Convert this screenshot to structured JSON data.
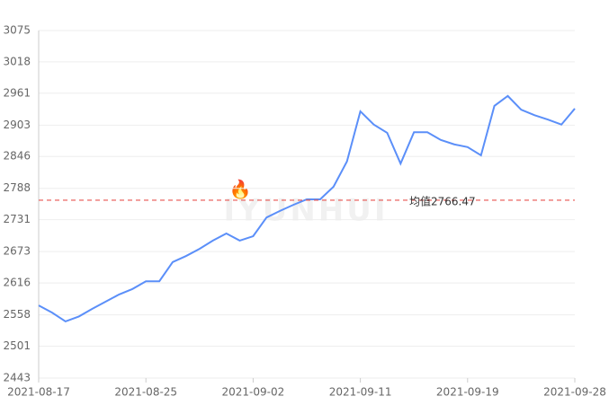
{
  "chart_data": {
    "type": "line",
    "categories": [
      "2021-08-17",
      null,
      null,
      null,
      null,
      null,
      null,
      null,
      "2021-08-25",
      null,
      null,
      null,
      null,
      null,
      null,
      null,
      "2021-09-02",
      null,
      null,
      null,
      null,
      null,
      null,
      null,
      "2021-09-11",
      null,
      null,
      null,
      null,
      null,
      null,
      null,
      "2021-09-19",
      null,
      null,
      null,
      null,
      null,
      null,
      null,
      "2021-09-28"
    ],
    "series": [
      {
        "color": "#5b8ff9",
        "values": [
          2575,
          2562,
          2546,
          2555,
          2569,
          2582,
          2595,
          2605,
          2619,
          2619,
          2654,
          2665,
          2678,
          2693,
          2706,
          2693,
          2701,
          2735,
          2747,
          2758,
          2768,
          2768,
          2791,
          2837,
          2928,
          2904,
          2889,
          2833,
          2890,
          2890,
          2876,
          2868,
          2863,
          2848,
          2938,
          2956,
          2931,
          2921,
          2913,
          2904,
          2933
        ]
      }
    ],
    "ylim": [
      2443,
      3075
    ],
    "yticks": [
      2443,
      2501,
      2558,
      2616,
      2673,
      2731,
      2788,
      2846,
      2903,
      2961,
      3018,
      3075
    ],
    "grid": true,
    "mean_line": {
      "value": 2766.47,
      "label": "均值2766.47",
      "color": "#e8534f"
    },
    "marker": "🔥",
    "watermark": "IYUNHUI"
  }
}
